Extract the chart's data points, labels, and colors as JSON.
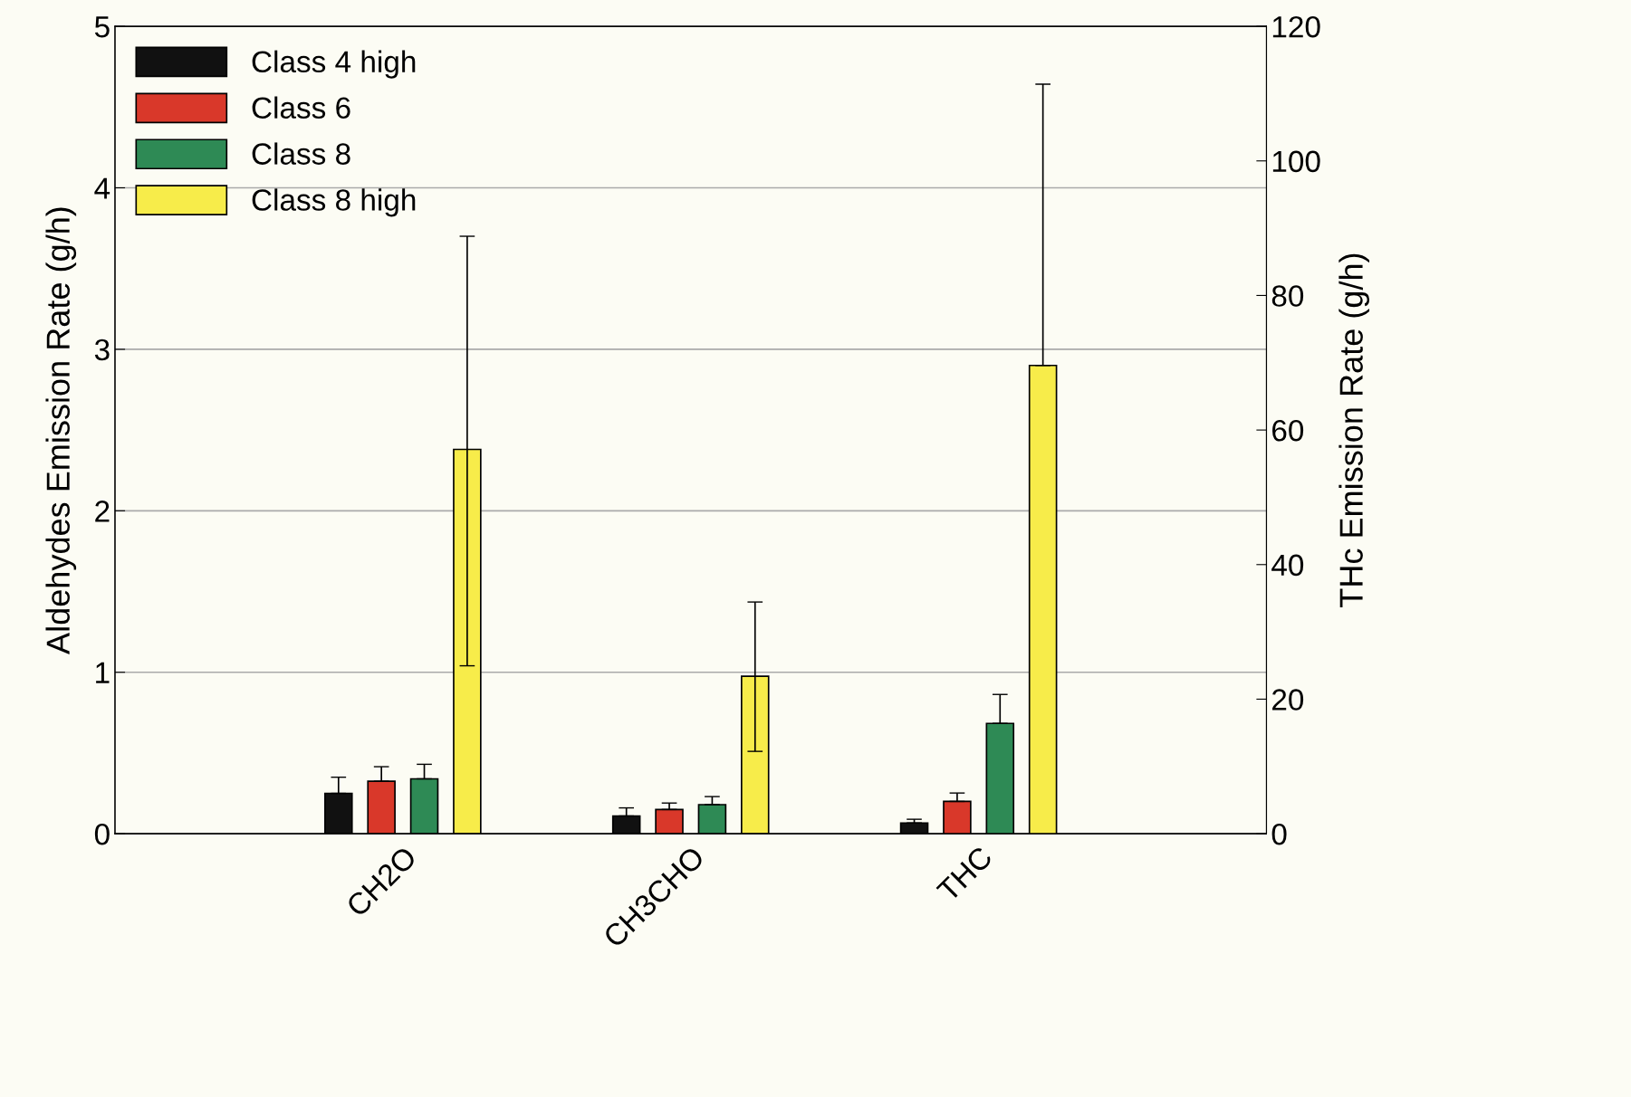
{
  "chart_data": {
    "type": "bar",
    "ylabel": "Aldehydes Emission Rate (g/h)",
    "y2label": "THc Emission Rate (g/h)",
    "categories": [
      "CH2O",
      "CH3CHO",
      "THC"
    ],
    "ylim": [
      0,
      5
    ],
    "yticks": [
      0,
      1,
      2,
      3,
      4,
      5
    ],
    "y2lim": [
      0,
      120
    ],
    "y2ticks": [
      0,
      20,
      40,
      60,
      80,
      100,
      120
    ],
    "grid": "y",
    "legend": "top left",
    "series": [
      {
        "name": "Class 4 high",
        "color": "#111111",
        "values": [
          0.25,
          0.11,
          null
        ],
        "errors": [
          [
            0.25,
            0.35
          ],
          [
            0.11,
            0.16
          ],
          null
        ]
      },
      {
        "name": "Class 6",
        "color": "#d9382a",
        "values": [
          0.325,
          0.15,
          null
        ],
        "errors": [
          [
            0.325,
            0.415
          ],
          [
            0.15,
            0.19
          ],
          null
        ]
      },
      {
        "name": "Class 8",
        "color": "#2e8a55",
        "values": [
          0.34,
          0.18,
          null
        ],
        "errors": [
          [
            0.34,
            0.43
          ],
          [
            0.18,
            0.23
          ],
          null
        ]
      },
      {
        "name": "Class 8 high",
        "color": "#f7ec4a",
        "values": [
          2.38,
          0.975,
          null
        ],
        "errors": [
          [
            1.04,
            3.7
          ],
          [
            0.51,
            1.435
          ],
          null
        ]
      },
      {
        "color": "#111111",
        "axis": "y2",
        "values": [
          null,
          null,
          1.6
        ],
        "errors": [
          null,
          null,
          [
            1.6,
            2.15
          ]
        ]
      },
      {
        "color": "#d9382a",
        "axis": "y2",
        "values": [
          null,
          null,
          4.8
        ],
        "errors": [
          null,
          null,
          [
            4.8,
            6.05
          ]
        ]
      },
      {
        "color": "#2e8a55",
        "axis": "y2",
        "values": [
          null,
          null,
          16.4
        ],
        "errors": [
          null,
          null,
          [
            16.4,
            20.7
          ]
        ]
      },
      {
        "color": "#f7ec4a",
        "axis": "y2",
        "values": [
          null,
          null,
          69.6
        ],
        "errors": [
          null,
          null,
          [
            69.6,
            111.4
          ]
        ]
      }
    ]
  }
}
